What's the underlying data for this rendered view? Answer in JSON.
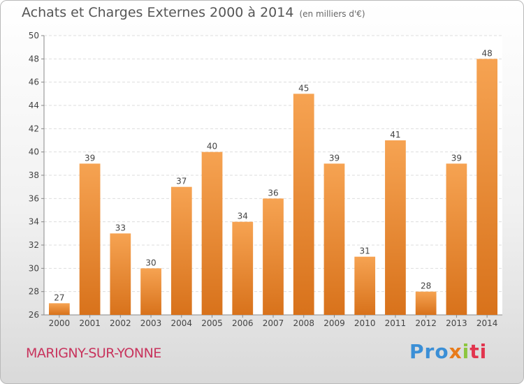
{
  "header": {
    "title": "Achats et Charges Externes 2000 à 2014",
    "unit": "(en milliers d'€)"
  },
  "footer": {
    "commune": "MARIGNY-SUR-YONNE",
    "brand": {
      "p1": "Pro",
      "p2": "x",
      "p3": "i",
      "p4": "ti"
    }
  },
  "colors": {
    "bar_light": "#f6a352",
    "bar_dark": "#d8721b",
    "grid": "#dddddd",
    "axis": "#888888",
    "text": "#444444"
  },
  "chart_data": {
    "type": "bar",
    "title": "Achats et Charges Externes 2000 à 2014",
    "subtitle": "(en milliers d'€)",
    "categories": [
      "2000",
      "2001",
      "2002",
      "2003",
      "2004",
      "2005",
      "2006",
      "2007",
      "2008",
      "2009",
      "2010",
      "2011",
      "2012",
      "2013",
      "2014"
    ],
    "values": [
      27,
      39,
      33,
      30,
      37,
      40,
      34,
      36,
      45,
      39,
      31,
      41,
      28,
      39,
      48
    ],
    "ylim": [
      26,
      50
    ],
    "yticks": [
      26,
      28,
      30,
      32,
      34,
      36,
      38,
      40,
      42,
      44,
      46,
      48,
      50
    ],
    "grid": "horizontal dashed",
    "legend": "none",
    "data_labels": true
  }
}
